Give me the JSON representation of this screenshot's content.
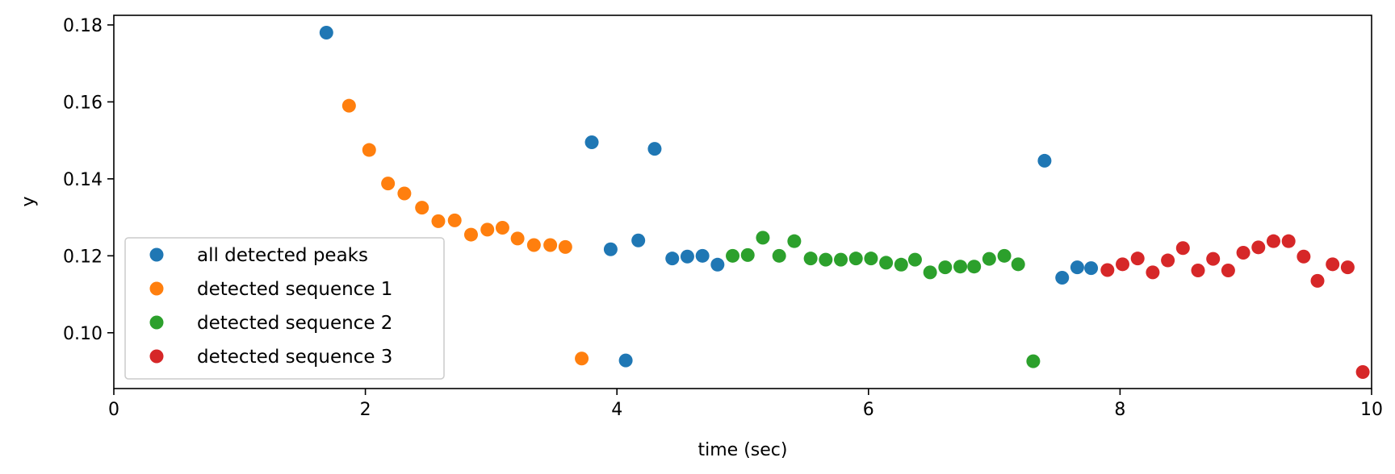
{
  "chart_data": {
    "type": "scatter",
    "title": "",
    "xlabel": "time (sec)",
    "ylabel": "y",
    "xlim": [
      0,
      10
    ],
    "ylim": [
      0.0855,
      0.1825
    ],
    "xticks": [
      0,
      2,
      4,
      6,
      8,
      10
    ],
    "xtick_labels": [
      "0",
      "2",
      "4",
      "6",
      "8",
      "10"
    ],
    "yticks": [
      0.1,
      0.12,
      0.14,
      0.16,
      0.18
    ],
    "ytick_labels": [
      "0.10",
      "0.12",
      "0.14",
      "0.16",
      "0.18"
    ],
    "grid": false,
    "legend_position": "lower-left",
    "series": [
      {
        "name": "all detected peaks",
        "color": "#1f77b4",
        "points": [
          [
            1.69,
            0.178
          ],
          [
            3.8,
            0.1495
          ],
          [
            3.95,
            0.1217
          ],
          [
            4.07,
            0.0928
          ],
          [
            4.17,
            0.124
          ],
          [
            4.3,
            0.1478
          ],
          [
            4.44,
            0.1193
          ],
          [
            4.56,
            0.1198
          ],
          [
            4.68,
            0.12
          ],
          [
            4.8,
            0.1177
          ],
          [
            7.4,
            0.1447
          ],
          [
            7.54,
            0.1143
          ],
          [
            7.66,
            0.117
          ],
          [
            7.77,
            0.1168
          ]
        ]
      },
      {
        "name": "detected sequence 1",
        "color": "#ff7f0e",
        "points": [
          [
            1.87,
            0.159
          ],
          [
            2.03,
            0.1475
          ],
          [
            2.18,
            0.1388
          ],
          [
            2.31,
            0.1362
          ],
          [
            2.45,
            0.1325
          ],
          [
            2.58,
            0.129
          ],
          [
            2.71,
            0.1292
          ],
          [
            2.84,
            0.1255
          ],
          [
            2.97,
            0.1268
          ],
          [
            3.09,
            0.1273
          ],
          [
            3.21,
            0.1245
          ],
          [
            3.34,
            0.1228
          ],
          [
            3.47,
            0.1228
          ],
          [
            3.59,
            0.1223
          ],
          [
            3.72,
            0.0933
          ]
        ]
      },
      {
        "name": "detected sequence 2",
        "color": "#2ca02c",
        "points": [
          [
            4.92,
            0.12
          ],
          [
            5.04,
            0.1202
          ],
          [
            5.16,
            0.1247
          ],
          [
            5.29,
            0.12
          ],
          [
            5.41,
            0.1238
          ],
          [
            5.54,
            0.1193
          ],
          [
            5.66,
            0.119
          ],
          [
            5.78,
            0.119
          ],
          [
            5.9,
            0.1193
          ],
          [
            6.02,
            0.1193
          ],
          [
            6.14,
            0.1182
          ],
          [
            6.26,
            0.1177
          ],
          [
            6.37,
            0.119
          ],
          [
            6.49,
            0.1157
          ],
          [
            6.61,
            0.117
          ],
          [
            6.73,
            0.1172
          ],
          [
            6.84,
            0.1172
          ],
          [
            6.96,
            0.1192
          ],
          [
            7.08,
            0.12
          ],
          [
            7.19,
            0.1178
          ],
          [
            7.31,
            0.0926
          ]
        ]
      },
      {
        "name": "detected sequence 3",
        "color": "#d62728",
        "points": [
          [
            7.9,
            0.1163
          ],
          [
            8.02,
            0.1178
          ],
          [
            8.14,
            0.1193
          ],
          [
            8.26,
            0.1157
          ],
          [
            8.38,
            0.1188
          ],
          [
            8.5,
            0.122
          ],
          [
            8.62,
            0.1162
          ],
          [
            8.74,
            0.1192
          ],
          [
            8.86,
            0.1162
          ],
          [
            8.98,
            0.1208
          ],
          [
            9.1,
            0.1222
          ],
          [
            9.22,
            0.1238
          ],
          [
            9.34,
            0.1238
          ],
          [
            9.46,
            0.1198
          ],
          [
            9.57,
            0.1135
          ],
          [
            9.69,
            0.1178
          ],
          [
            9.81,
            0.117
          ],
          [
            9.93,
            0.0898
          ]
        ]
      }
    ]
  }
}
